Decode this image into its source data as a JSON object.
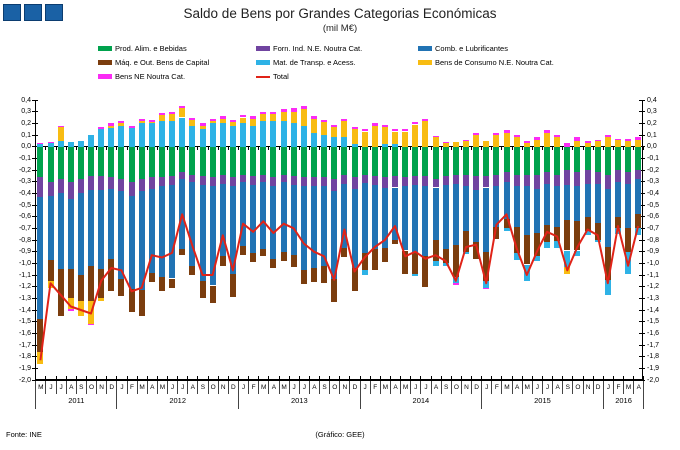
{
  "title": "Saldo de Bens por Grandes Categorias Económicas",
  "subtitle": "(mil M€)",
  "footer": {
    "left": "Fonte: INE",
    "center": "(Gráfico: GEE)"
  },
  "logo": {
    "square_count": 3,
    "fill": "#1A61A5",
    "border": "#0C3D70"
  },
  "colors": {
    "axis": "#000000",
    "background": "#ffffff"
  },
  "chart_data": {
    "type": "bar",
    "stacked": true,
    "overlay_line_series": "Total",
    "ylim": [
      -2.0,
      0.4
    ],
    "ytick_step": 0.1,
    "grid": false,
    "legend_position": "top",
    "year_groups": [
      {
        "label": "2011",
        "months": [
          "M",
          "J",
          "J",
          "A",
          "S",
          "O",
          "N",
          "D"
        ]
      },
      {
        "label": "2012",
        "months": [
          "J",
          "F",
          "M",
          "A",
          "M",
          "J",
          "J",
          "A",
          "S",
          "O",
          "N",
          "D"
        ]
      },
      {
        "label": "2013",
        "months": [
          "J",
          "F",
          "M",
          "A",
          "M",
          "J",
          "J",
          "A",
          "S",
          "O",
          "N",
          "D"
        ]
      },
      {
        "label": "2014",
        "months": [
          "J",
          "F",
          "M",
          "A",
          "M",
          "J",
          "J",
          "A",
          "S",
          "O",
          "N",
          "D"
        ]
      },
      {
        "label": "2015",
        "months": [
          "J",
          "F",
          "M",
          "A",
          "M",
          "J",
          "J",
          "A",
          "S",
          "O",
          "N",
          "D"
        ]
      },
      {
        "label": "2016",
        "months": [
          "J",
          "F",
          "M",
          "A"
        ]
      }
    ],
    "series": [
      {
        "name": "Prod. Alim. e Bebidas",
        "color": "#00A24D",
        "values": [
          -0.26,
          -0.3,
          -0.28,
          -0.3,
          -0.28,
          -0.25,
          -0.25,
          -0.26,
          -0.28,
          -0.3,
          -0.28,
          -0.26,
          -0.26,
          -0.25,
          -0.22,
          -0.24,
          -0.25,
          -0.26,
          -0.24,
          -0.26,
          -0.24,
          -0.25,
          -0.24,
          -0.26,
          -0.24,
          -0.25,
          -0.26,
          -0.26,
          -0.26,
          -0.28,
          -0.24,
          -0.26,
          -0.24,
          -0.25,
          -0.26,
          -0.25,
          -0.26,
          -0.25,
          -0.25,
          -0.28,
          -0.25,
          -0.24,
          -0.24,
          -0.25,
          -0.25,
          -0.24,
          -0.22,
          -0.24,
          -0.24,
          -0.24,
          -0.22,
          -0.24,
          -0.2,
          -0.22,
          -0.2,
          -0.22,
          -0.24,
          -0.2,
          -0.22,
          -0.2
        ]
      },
      {
        "name": "Forn. Ind. N.E. Noutra Cat.",
        "color": "#7044A0",
        "values": [
          -0.17,
          -0.12,
          -0.12,
          -0.15,
          -0.12,
          -0.12,
          -0.12,
          -0.1,
          -0.1,
          -0.12,
          -0.1,
          -0.1,
          -0.08,
          -0.08,
          -0.06,
          -0.06,
          -0.08,
          -0.08,
          -0.08,
          -0.08,
          -0.06,
          -0.08,
          -0.06,
          -0.08,
          -0.06,
          -0.08,
          -0.08,
          -0.08,
          -0.08,
          -0.1,
          -0.08,
          -0.1,
          -0.07,
          -0.08,
          -0.09,
          -0.1,
          -0.08,
          -0.08,
          -0.09,
          -0.07,
          -0.08,
          -0.08,
          -0.1,
          -0.12,
          -0.1,
          -0.1,
          -0.08,
          -0.1,
          -0.1,
          -0.12,
          -0.1,
          -0.1,
          -0.13,
          -0.12,
          -0.12,
          -0.1,
          -0.12,
          -0.1,
          -0.1,
          -0.08
        ]
      },
      {
        "name": "Comb. e Lubrificantes",
        "color": "#2173B4",
        "values": [
          -1.05,
          -0.55,
          -0.65,
          -0.6,
          -0.7,
          -0.65,
          -0.68,
          -0.6,
          -0.75,
          -0.8,
          -0.85,
          -0.72,
          -0.78,
          -0.8,
          -0.6,
          -0.72,
          -0.82,
          -0.85,
          -0.62,
          -0.75,
          -0.55,
          -0.58,
          -0.58,
          -0.62,
          -0.6,
          -0.6,
          -0.72,
          -0.7,
          -0.68,
          -0.75,
          -0.55,
          -0.68,
          -0.6,
          -0.55,
          -0.52,
          -0.45,
          -0.55,
          -0.58,
          -0.6,
          -0.45,
          -0.55,
          -0.52,
          -0.38,
          -0.45,
          -0.55,
          -0.35,
          -0.32,
          -0.35,
          -0.42,
          -0.38,
          -0.35,
          -0.35,
          -0.3,
          -0.3,
          -0.28,
          -0.33,
          -0.5,
          -0.3,
          -0.38,
          -0.3
        ]
      },
      {
        "name": "Máq. e Out. Bens de Capital",
        "color": "#7B3D0E",
        "values": [
          -0.28,
          -0.18,
          -0.4,
          -0.25,
          -0.22,
          -0.3,
          -0.25,
          -0.28,
          -0.15,
          -0.2,
          -0.22,
          -0.08,
          -0.12,
          -0.08,
          -0.05,
          -0.08,
          -0.15,
          -0.15,
          -0.08,
          -0.2,
          -0.08,
          -0.08,
          -0.06,
          -0.08,
          -0.08,
          -0.1,
          -0.12,
          -0.12,
          -0.15,
          -0.2,
          -0.08,
          -0.2,
          -0.15,
          -0.18,
          -0.12,
          -0.03,
          -0.2,
          -0.18,
          -0.26,
          -0.18,
          -0.12,
          -0.28,
          -0.18,
          -0.14,
          -0.25,
          -0.1,
          -0.08,
          -0.22,
          -0.25,
          -0.2,
          -0.15,
          -0.12,
          -0.26,
          -0.25,
          -0.12,
          -0.15,
          -0.28,
          -0.1,
          -0.2,
          -0.12
        ]
      },
      {
        "name": "Mat. de Transp. e Acess.",
        "color": "#2EB2E6",
        "values": [
          0.02,
          0.03,
          0.05,
          0.04,
          0.05,
          0.1,
          0.15,
          0.16,
          0.18,
          0.16,
          0.2,
          0.2,
          0.22,
          0.22,
          0.25,
          0.18,
          0.15,
          0.2,
          0.2,
          0.18,
          0.2,
          0.18,
          0.22,
          0.22,
          0.22,
          0.2,
          0.18,
          0.12,
          0.1,
          0.08,
          0.08,
          0.02,
          -0.04,
          0.0,
          0.02,
          0.02,
          0.0,
          -0.02,
          0.0,
          -0.04,
          -0.02,
          -0.05,
          -0.02,
          0.0,
          -0.06,
          0.0,
          -0.02,
          -0.06,
          -0.14,
          -0.04,
          -0.05,
          -0.06,
          -0.14,
          -0.05,
          -0.04,
          -0.02,
          -0.13,
          -0.05,
          -0.19,
          -0.06
        ]
      },
      {
        "name": "Bens de Consumo N.E. Noutra Cat.",
        "color": "#F8BC12",
        "values": [
          -0.1,
          -0.06,
          0.12,
          -0.09,
          -0.13,
          -0.2,
          -0.02,
          0.02,
          0.02,
          0.0,
          0.02,
          0.01,
          0.05,
          0.06,
          0.08,
          0.05,
          0.03,
          0.02,
          0.04,
          0.03,
          0.05,
          0.06,
          0.06,
          0.06,
          0.08,
          0.1,
          0.14,
          0.12,
          0.11,
          0.09,
          0.14,
          0.13,
          0.13,
          0.18,
          0.15,
          0.11,
          0.13,
          0.19,
          0.22,
          0.08,
          0.03,
          0.04,
          0.05,
          0.1,
          0.05,
          0.1,
          0.12,
          0.08,
          0.03,
          0.06,
          0.12,
          0.08,
          -0.06,
          0.05,
          0.03,
          0.05,
          0.08,
          0.06,
          0.05,
          0.06
        ]
      },
      {
        "name": "Bens NE Noutra Cat.",
        "color": "#FB2BF5",
        "values": [
          0.01,
          0.01,
          0.01,
          -0.02,
          0.0,
          -0.01,
          0.02,
          0.02,
          0.02,
          0.02,
          0.02,
          0.02,
          0.02,
          0.02,
          0.02,
          0.02,
          0.02,
          0.02,
          0.02,
          0.02,
          0.02,
          0.02,
          0.02,
          0.02,
          0.02,
          0.03,
          0.03,
          0.02,
          0.02,
          0.02,
          0.02,
          0.02,
          0.02,
          0.02,
          0.02,
          0.02,
          0.02,
          0.02,
          0.02,
          0.01,
          0.01,
          -0.02,
          0.01,
          0.02,
          -0.01,
          0.02,
          0.02,
          0.02,
          0.02,
          0.02,
          0.02,
          0.02,
          0.03,
          0.03,
          0.02,
          0.01,
          0.02,
          0.01,
          0.02,
          0.02
        ]
      }
    ],
    "total": {
      "name": "Total",
      "color": "#E02318",
      "values": [
        -1.83,
        -1.17,
        -1.27,
        -1.37,
        -1.4,
        -1.43,
        -1.15,
        -1.04,
        -1.06,
        -1.24,
        -1.21,
        -0.93,
        -0.95,
        -0.91,
        -0.58,
        -0.85,
        -1.1,
        -1.1,
        -0.76,
        -1.06,
        -0.66,
        -0.73,
        -0.64,
        -0.74,
        -0.66,
        -0.7,
        -0.83,
        -0.9,
        -0.94,
        -1.14,
        -0.71,
        -1.07,
        -0.95,
        -0.86,
        -0.8,
        -0.68,
        -0.94,
        -0.9,
        -0.96,
        -0.93,
        -0.98,
        -1.15,
        -0.86,
        -0.84,
        -1.17,
        -0.67,
        -0.58,
        -0.87,
        -1.1,
        -0.9,
        -0.73,
        -0.77,
        -1.06,
        -0.86,
        -0.71,
        -0.76,
        -1.17,
        -0.68,
        -1.02,
        -0.68
      ]
    }
  }
}
